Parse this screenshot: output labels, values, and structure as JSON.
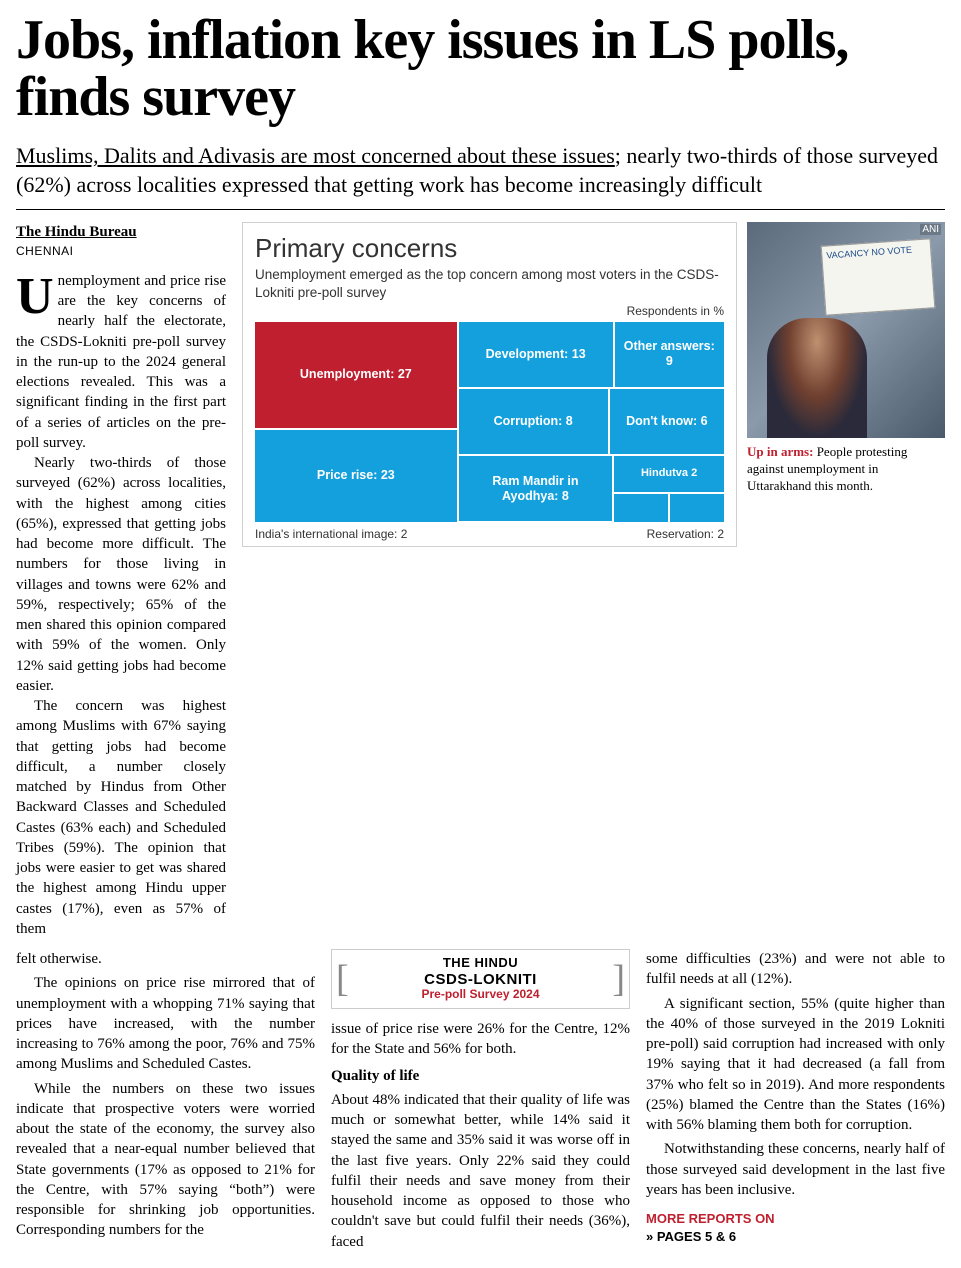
{
  "headline": "Jobs, inflation key issues in LS polls, finds survey",
  "standfirst_underlined": "Muslims, Dalits and Adivasis are most concerned about these issues",
  "standfirst_rest": "; nearly two-thirds of those surveyed (62%) across localities expressed that getting work has become increasingly difficult",
  "byline": "The Hindu Bureau",
  "dateline": "CHENNAI",
  "body": {
    "p1": "Unemployment and price rise are the key concerns of nearly half the electorate, the CSDS-Lokniti pre-poll survey in the run-up to the 2024 general elections revealed. This was a significant finding in the first part of a series of articles on the pre-poll survey.",
    "p2": "Nearly two-thirds of those surveyed (62%) across localities, with the highest among cities (65%), expressed that getting jobs had become more difficult. The numbers for those living in villages and towns were 62% and 59%, respectively; 65% of the men shared this opinion compared with 59% of the women. Only 12% said getting jobs had become easier.",
    "p3": "The concern was highest among Muslims with 67% saying that getting jobs had become difficult, a number closely matched by Hindus from Other Backward Classes and Scheduled Castes (63% each) and Scheduled Tribes (59%). The opinion that jobs were easier to get was shared the highest among Hindu upper castes (17%), even as 57% of them",
    "p4": "felt otherwise.",
    "p5": "The opinions on price rise mirrored that of unemployment with a whopping 71% saying that prices have increased, with the number increasing to 76% among the poor, 76% and 75% among Muslims and Scheduled Castes.",
    "p6": "While the numbers on these two issues indicate that prospective voters were worried about the state of the economy, the survey also revealed that a near-equal number believed that State governments (17% as opposed to 21% for the Centre, with 57% saying “both”) were responsible for shrinking job opportunities. Corresponding numbers for the",
    "p7": "issue of price rise were 26% for the Centre, 12% for the State and 56% for both.",
    "subhead": "Quality of life",
    "p8": "About 48% indicated that their quality of life was much or somewhat better, while 14% said it stayed the same and 35% said it was worse off in the last five years. Only 22% said they could fulfil their needs and save money from their household income as opposed to those who couldn't save but could fulfil their needs (36%), faced",
    "p9": "some difficulties (23%) and were not able to fulfil needs at all (12%).",
    "p10": "A significant section, 55% (quite higher than the 40% of those surveyed in the 2019 Lokniti pre-poll) said corruption had increased with only 19% saying that it had decreased (a fall from 37% who felt so in 2019). And more respondents (25%) blamed the Centre than the States (16%) with 56% blaming them both for corruption.",
    "p11": "Notwithstanding these concerns, nearly half of those surveyed said development in the last five years has been inclusive."
  },
  "chart": {
    "title": "Primary concerns",
    "subtitle": "Unemployment emerged as the top concern among most voters in the CSDS-Lokniti pre-poll survey",
    "resp_label": "Respondents in %",
    "unemployment": "Unemployment: 27",
    "price_rise": "Price rise: 23",
    "development": "Development: 13",
    "other": "Other answers: 9",
    "corruption": "Corruption: 8",
    "dont_know": "Don't know: 6",
    "ram_mandir": "Ram Mandir in Ayodhya: 8",
    "hindutva": "Hindutva 2",
    "foot_left": "India's international image: 2",
    "foot_right": "Reservation: 2",
    "colors": {
      "highlight": "#bf1f2e",
      "base": "#14a0dc"
    }
  },
  "photo": {
    "credit": "ANI",
    "sign_text": "VACANCY NO VOTE",
    "caption_lead": "Up in arms:",
    "caption_body": " People protesting against unemployment in Uttarakhand this month."
  },
  "survey_logo": {
    "line1": "THE HINDU",
    "line2": "CSDS-LOKNITI",
    "line3": "Pre-poll Survey 2024"
  },
  "more": {
    "label": "MORE REPORTS ON",
    "pages": "» PAGES 5 & 6"
  }
}
